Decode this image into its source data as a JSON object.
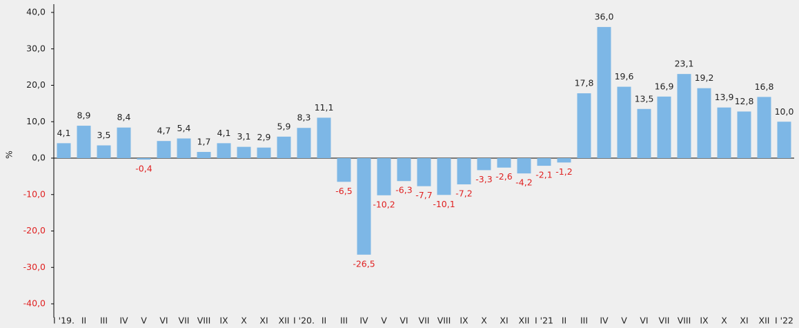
{
  "chart_data": {
    "type": "bar",
    "y_label": "%",
    "categories": [
      "I '19.",
      "II",
      "III",
      "IV",
      "V",
      "VI",
      "VII",
      "VIII",
      "IX",
      "X",
      "XI",
      "XII",
      "I '20.",
      "II",
      "III",
      "IV",
      "V",
      "VI",
      "VII",
      "VIII",
      "IX",
      "X",
      "XI",
      "XII",
      "I '21",
      "II",
      "III",
      "IV",
      "V",
      "VI",
      "VII",
      "VIII",
      "IX",
      "X",
      "XI",
      "XII",
      "I '22"
    ],
    "values": [
      4.1,
      8.9,
      3.5,
      8.4,
      -0.4,
      4.7,
      5.4,
      1.7,
      4.1,
      3.1,
      2.9,
      5.9,
      8.3,
      11.1,
      -6.5,
      -26.5,
      -10.2,
      -6.3,
      -7.7,
      -10.1,
      -7.2,
      -3.3,
      -2.6,
      -4.2,
      -2.1,
      -1.2,
      17.8,
      36.0,
      19.6,
      13.5,
      16.9,
      23.1,
      19.2,
      13.9,
      12.8,
      16.8,
      10.0
    ],
    "value_labels": [
      "4,1",
      "8,9",
      "3,5",
      "8,4",
      "-0,4",
      "4,7",
      "5,4",
      "1,7",
      "4,1",
      "3,1",
      "2,9",
      "5,9",
      "8,3",
      "11,1",
      "-6,5",
      "-26,5",
      "-10,2",
      "-6,3",
      "-7,7",
      "-10,1",
      "-7,2",
      "-3,3",
      "-2,6",
      "-4,2",
      "-2,1",
      "-1,2",
      "17,8",
      "36,0",
      "19,6",
      "13,5",
      "16,9",
      "23,1",
      "19,2",
      "13,9",
      "12,8",
      "16,8",
      "10,0"
    ],
    "color": "#7db7e6",
    "negative_label_color": "#e02020",
    "ylim": [
      -40,
      40
    ],
    "yticks": [
      {
        "value": -40,
        "label": "-40,0"
      },
      {
        "value": -30,
        "label": "-30,0"
      },
      {
        "value": -20,
        "label": "-20,0"
      },
      {
        "value": -10,
        "label": "-10,0"
      },
      {
        "value": 0,
        "label": "0,0"
      },
      {
        "value": 10,
        "label": "10,0"
      },
      {
        "value": 20,
        "label": "20,0"
      },
      {
        "value": 30,
        "label": "30,0"
      },
      {
        "value": 40,
        "label": "40,0"
      }
    ]
  }
}
